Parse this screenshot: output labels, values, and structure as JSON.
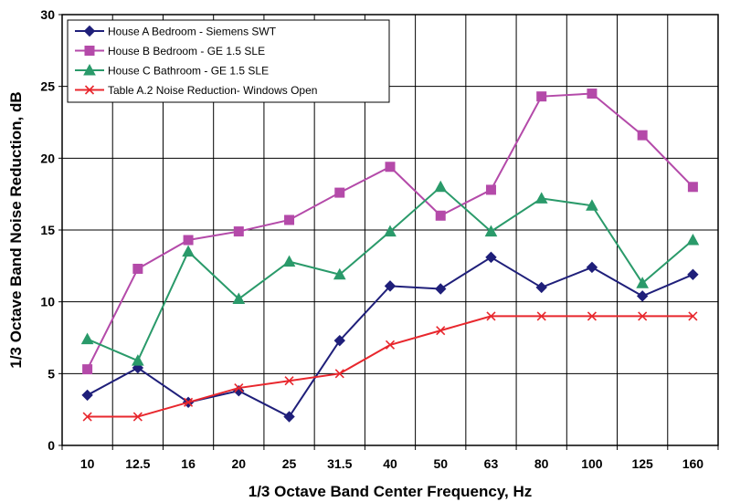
{
  "chart_data": {
    "type": "line",
    "xlabel": "1/3 Octave Band Center Frequency, Hz",
    "ylabel": "1/3 Octave Band Noise Reduction, dB",
    "categories": [
      "10",
      "12.5",
      "16",
      "20",
      "25",
      "31.5",
      "40",
      "50",
      "63",
      "80",
      "100",
      "125",
      "160"
    ],
    "ylim": [
      0,
      30
    ],
    "yticks": [
      "0",
      "5",
      "10",
      "15",
      "20",
      "25",
      "30"
    ],
    "grid": true,
    "legend_position": "top-left",
    "series": [
      {
        "name": "House A Bedroom - Siemens SWT",
        "color": "#1f1f7a",
        "marker": "diamond",
        "values": [
          3.5,
          5.4,
          3.0,
          3.8,
          2.0,
          7.3,
          11.1,
          10.9,
          13.1,
          11.0,
          12.4,
          10.4,
          11.9
        ]
      },
      {
        "name": "House B Bedroom - GE 1.5 SLE",
        "color": "#b44aa9",
        "marker": "square",
        "values": [
          5.3,
          12.3,
          14.3,
          14.9,
          15.7,
          17.6,
          19.4,
          16.0,
          17.8,
          24.3,
          24.5,
          21.6,
          18.0
        ]
      },
      {
        "name": "House C Bathroom - GE 1.5 SLE",
        "color": "#2a9a6a",
        "marker": "triangle",
        "values": [
          7.4,
          5.9,
          13.5,
          10.2,
          12.8,
          11.9,
          14.9,
          18.0,
          14.9,
          17.2,
          16.7,
          11.3,
          14.3
        ]
      },
      {
        "name": "Table A.2 Noise Reduction- Windows Open",
        "color": "#e8272d",
        "marker": "x",
        "values": [
          2.0,
          2.0,
          3.0,
          4.0,
          4.5,
          5.0,
          7.0,
          8.0,
          9.0,
          9.0,
          9.0,
          9.0,
          9.0
        ]
      }
    ]
  }
}
